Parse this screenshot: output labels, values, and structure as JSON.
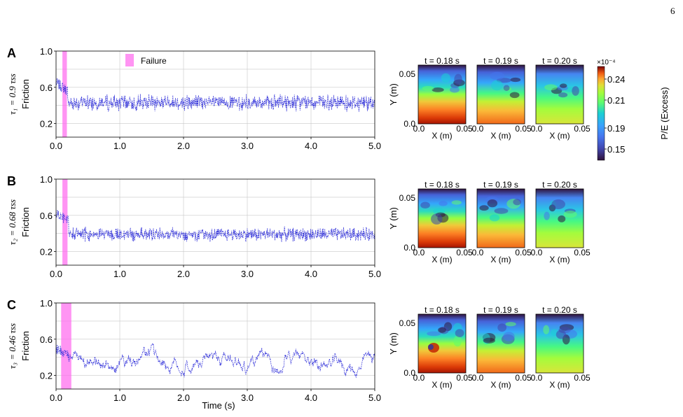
{
  "page_number": "6",
  "failure_label": "Failure",
  "colors": {
    "friction_line": "#2a2ad8",
    "failure_band": "#ff66ee",
    "grid": "#c8c8c8"
  },
  "colorbar": {
    "exponent": "×10⁻⁴",
    "label": "P/E (Excess)",
    "ticks": [
      "0.24",
      "0.21",
      "0.19",
      "0.15"
    ]
  },
  "map_axis": {
    "xlabel": "X (m)",
    "ylabel": "Y (m)",
    "x_ticks": [
      "0.0",
      "0.05"
    ],
    "y_ticks": [
      "0.0",
      "0.05"
    ],
    "titles": [
      "t = 0.18 s",
      "t = 0.19 s",
      "t = 0.20 s"
    ]
  },
  "chart_data": [
    {
      "panel": "A",
      "type": "line",
      "ylabel": "Friction",
      "side_label": "τ₁ = 0.9 τss",
      "xlim": [
        0,
        5
      ],
      "ylim": [
        0.05,
        1.0
      ],
      "x_ticks": [
        "0.0",
        "1.0",
        "2.0",
        "3.0",
        "4.0",
        "5.0"
      ],
      "y_ticks": [
        "0.2",
        "0.6",
        "1.0"
      ],
      "failure_window": [
        0.1,
        0.17
      ],
      "series": [
        {
          "initial": 0.65,
          "drop_time": 0.18,
          "mean": 0.43,
          "fluctuation": 0.07,
          "style": "noisy"
        }
      ]
    },
    {
      "panel": "B",
      "type": "line",
      "ylabel": "Friction",
      "side_label": "τ₂ = 0.68 τss",
      "xlim": [
        0,
        5
      ],
      "ylim": [
        0.05,
        1.0
      ],
      "x_ticks": [
        "0.0",
        "1.0",
        "2.0",
        "3.0",
        "4.0",
        "5.0"
      ],
      "y_ticks": [
        "0.2",
        "0.6",
        "1.0"
      ],
      "failure_window": [
        0.1,
        0.18
      ],
      "series": [
        {
          "initial": 0.62,
          "drop_time": 0.2,
          "mean": 0.39,
          "fluctuation": 0.06,
          "style": "noisy"
        }
      ]
    },
    {
      "panel": "C",
      "type": "line",
      "ylabel": "Friction",
      "side_label": "τ₃ = 0.46 τss",
      "xlim": [
        0,
        5
      ],
      "ylim": [
        0.05,
        1.0
      ],
      "x_ticks": [
        "0.0",
        "1.0",
        "2.0",
        "3.0",
        "4.0",
        "5.0"
      ],
      "y_ticks": [
        "0.2",
        "0.6",
        "1.0"
      ],
      "xlabel": "Time (s)",
      "failure_window": [
        0.08,
        0.24
      ],
      "series": [
        {
          "initial": 0.5,
          "drop_time": 0.2,
          "mean": 0.33,
          "fluctuation": 0.09,
          "style": "wander"
        }
      ]
    }
  ]
}
